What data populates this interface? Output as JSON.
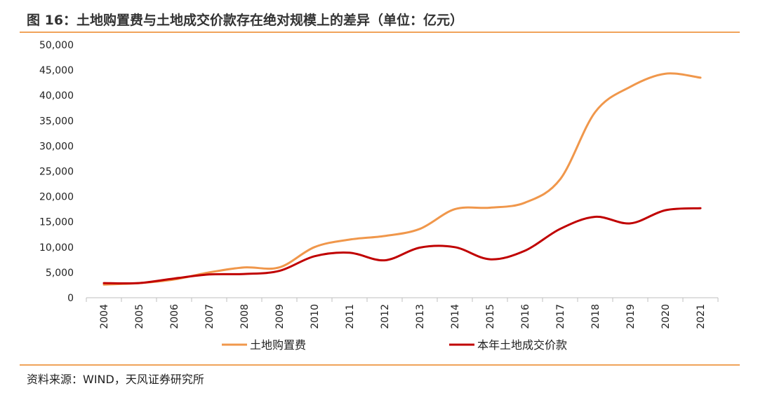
{
  "figure": {
    "title": "图 16：土地购置费与土地成交价款存在绝对规模上的差异（单位：亿元）",
    "source": "资料来源：WIND，天风证券研究所"
  },
  "colors": {
    "accent_rule": "#f0a35a",
    "series_1": "#f0974b",
    "series_2": "#c00000"
  },
  "chart_data": {
    "type": "line",
    "x": [
      "2004",
      "2005",
      "2006",
      "2007",
      "2008",
      "2009",
      "2010",
      "2011",
      "2012",
      "2013",
      "2014",
      "2015",
      "2016",
      "2017",
      "2018",
      "2019",
      "2020",
      "2021"
    ],
    "y_ticks": [
      "0",
      "5,000",
      "10,000",
      "15,000",
      "20,000",
      "25,000",
      "30,000",
      "35,000",
      "40,000",
      "45,000",
      "50,000"
    ],
    "ylim": [
      0,
      50000
    ],
    "grid": false,
    "legend_position": "bottom",
    "series": [
      {
        "name": "土地购置费",
        "color": "#f0974b",
        "values": [
          2600,
          2900,
          3600,
          5000,
          6000,
          6000,
          10000,
          11500,
          12200,
          13600,
          17500,
          17800,
          18800,
          23400,
          36700,
          41700,
          44300,
          43500
        ]
      },
      {
        "name": "本年土地成交价款",
        "color": "#c00000",
        "values": [
          2900,
          2900,
          3800,
          4600,
          4700,
          5300,
          8200,
          8900,
          7400,
          9900,
          10000,
          7600,
          9300,
          13600,
          16000,
          14700,
          17300,
          17700
        ]
      }
    ]
  }
}
